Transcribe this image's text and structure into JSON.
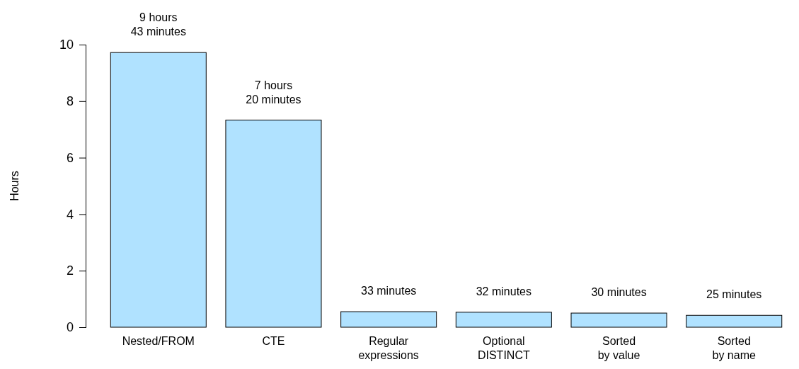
{
  "chart_data": {
    "type": "bar",
    "ylabel": "Hours",
    "categories": [
      "Nested/FROM",
      "CTE",
      "Regular\nexpressions",
      "Optional\nDISTINCT",
      "Sorted\nby value",
      "Sorted\nby name"
    ],
    "values": [
      9.72,
      7.33,
      0.55,
      0.53,
      0.5,
      0.42
    ],
    "annotations": [
      {
        "text": "9 hours\n43 minutes",
        "x": "Nested/FROM",
        "y": 9.72
      },
      {
        "text": "7 hours\n20 minutes",
        "x": "CTE",
        "y": 7.33
      },
      {
        "text": "33 minutes",
        "x": "Regular\nexpressions",
        "y": 0.55
      },
      {
        "text": "32 minutes",
        "x": "Optional\nDISTINCT",
        "y": 0.53
      },
      {
        "text": "30 minutes",
        "x": "Sorted\nby value",
        "y": 0.5
      },
      {
        "text": "25 minutes",
        "x": "Sorted\nby name",
        "y": 0.42
      }
    ],
    "color": "#b0e2ff",
    "ylim": [
      0,
      10
    ],
    "yticks": [
      0,
      2,
      4,
      6,
      8,
      10
    ],
    "grid": false
  }
}
